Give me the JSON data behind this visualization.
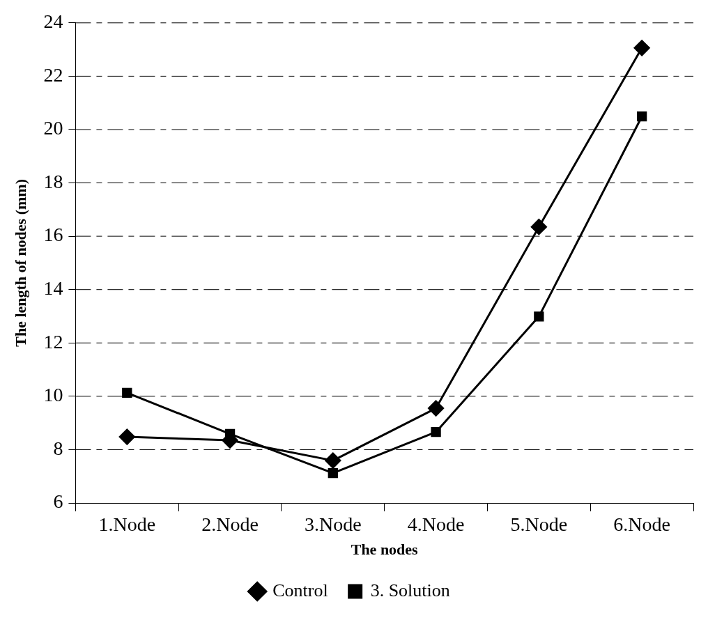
{
  "chart_data": {
    "type": "line",
    "xlabel": "The nodes",
    "ylabel": "The length of nodes (mm)",
    "categories": [
      "1.Node",
      "2.Node",
      "3.Node",
      "4.Node",
      "5.Node",
      "6.Node"
    ],
    "series": [
      {
        "name": "Control",
        "color": "#000000",
        "marker": "diamond",
        "values": [
          8.48,
          8.35,
          7.59,
          9.55,
          16.35,
          23.06
        ]
      },
      {
        "name": "3. Solution",
        "color": "#000000",
        "marker": "square",
        "values": [
          10.13,
          8.59,
          7.12,
          8.66,
          12.99,
          20.49
        ]
      }
    ],
    "ylim": [
      6,
      24
    ],
    "yticks": [
      6,
      8,
      10,
      12,
      14,
      16,
      18,
      20,
      22,
      24
    ],
    "grid": "y",
    "legend": "bottom",
    "line_style": "solid"
  }
}
